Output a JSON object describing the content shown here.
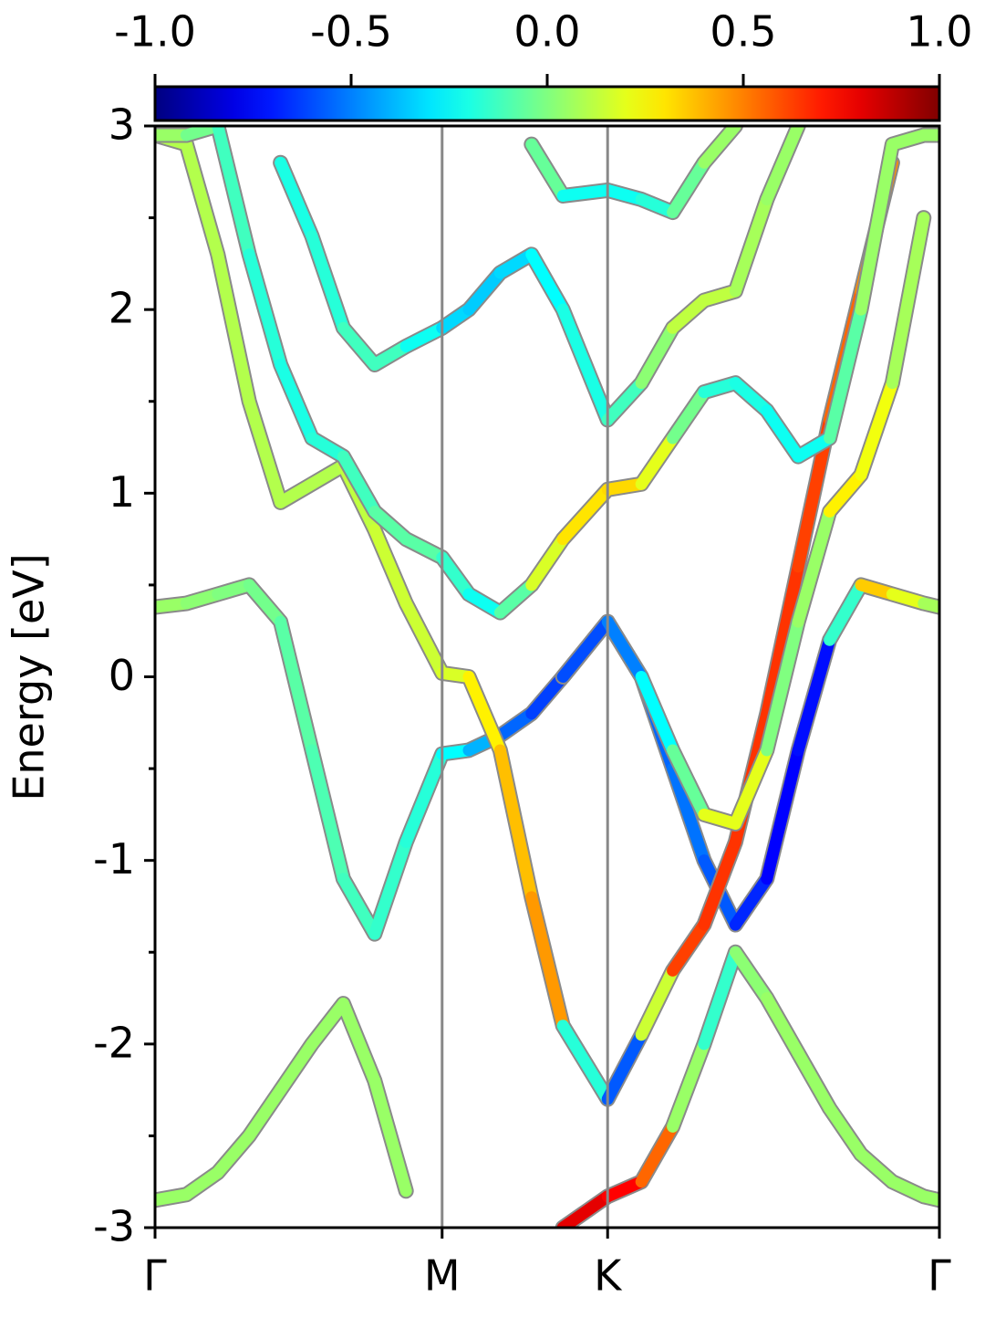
{
  "chart_data": {
    "type": "line",
    "ylabel": "Energy [eV]",
    "ylim": [
      -3,
      3
    ],
    "yticks": [
      -3,
      -2,
      -1,
      0,
      1,
      2,
      3
    ],
    "yminorticks": [
      -2.5,
      -1.5,
      -0.5,
      0.5,
      1.5,
      2.5
    ],
    "xlim": [
      0,
      1
    ],
    "xticks": [
      {
        "value": 0,
        "label": "Γ"
      },
      {
        "value": 0.366,
        "label": "M"
      },
      {
        "value": 0.577,
        "label": "K"
      },
      {
        "value": 1,
        "label": "Γ"
      }
    ],
    "vlines": [
      0.366,
      0.577
    ],
    "colormap": "jet",
    "clim": [
      -1,
      1
    ],
    "cticks": [
      {
        "value": -1,
        "label": "-1.0"
      },
      {
        "value": -0.5,
        "label": "-0.5"
      },
      {
        "value": 0,
        "label": "0.0"
      },
      {
        "value": 0.5,
        "label": "0.5"
      },
      {
        "value": 1,
        "label": "1.0"
      }
    ],
    "x": [
      0,
      0.04,
      0.08,
      0.12,
      0.16,
      0.2,
      0.24,
      0.28,
      0.32,
      0.366,
      0.4,
      0.44,
      0.48,
      0.52,
      0.577,
      0.62,
      0.66,
      0.7,
      0.74,
      0.78,
      0.82,
      0.86,
      0.9,
      0.94,
      0.98,
      1
    ],
    "series": [
      {
        "values": [
          -2.85,
          -2.82,
          -2.7,
          -2.5,
          -2.25,
          -2.0,
          -1.78,
          -2.2,
          -2.8,
          null,
          null,
          null,
          null,
          -3.0,
          -2.83,
          -2.75,
          -2.45,
          -2.0,
          -1.5,
          -1.75,
          -2.05,
          -2.35,
          -2.6,
          -2.75,
          -2.83,
          -2.85
        ],
        "weights": [
          0.05,
          0.05,
          0.05,
          0.05,
          0.05,
          0.05,
          0.05,
          0.05,
          0.05,
          null,
          null,
          null,
          null,
          0.8,
          0.8,
          0.7,
          0.4,
          -0.3,
          0.0,
          0.05,
          0.05,
          0.05,
          0.05,
          0.05,
          0.05,
          0.05
        ]
      },
      {
        "values": [
          0.38,
          0.4,
          0.45,
          0.5,
          0.3,
          -0.4,
          -1.1,
          -1.4,
          -0.9,
          -0.42,
          -0.4,
          -0.32,
          -0.2,
          0.0,
          0.3,
          0.0,
          -0.5,
          -1.0,
          -1.35,
          -1.1,
          -0.4,
          0.2,
          0.5,
          0.45,
          0.4,
          0.38
        ],
        "weights": [
          0.05,
          0.05,
          0.0,
          0.0,
          -0.05,
          -0.1,
          -0.1,
          -0.15,
          -0.15,
          -0.2,
          -0.3,
          -0.5,
          -0.6,
          -0.65,
          -0.65,
          -0.6,
          -0.5,
          -0.55,
          -0.6,
          -0.75,
          -0.75,
          -0.7,
          0.4,
          0.3,
          0.1,
          0.05
        ]
      },
      {
        "values": [
          2.95,
          2.9,
          2.3,
          1.5,
          0.95,
          1.05,
          1.15,
          0.8,
          0.4,
          0.02,
          0.0,
          -0.4,
          -1.2,
          -1.9,
          -2.3,
          -1.95,
          -1.6,
          -1.35,
          -0.9,
          -0.2,
          0.6,
          1.4,
          2.1,
          2.8,
          null,
          null
        ],
        "weights": [
          0.1,
          0.1,
          0.1,
          0.1,
          0.1,
          0.1,
          0.1,
          0.15,
          0.15,
          0.15,
          0.2,
          0.35,
          0.4,
          0.5,
          -0.85,
          -0.3,
          0.6,
          0.65,
          0.65,
          0.65,
          0.65,
          0.6,
          0.5,
          0.45,
          null,
          null
        ]
      },
      {
        "values": [
          2.95,
          2.95,
          3.0,
          2.3,
          1.7,
          1.3,
          1.2,
          0.9,
          0.75,
          0.65,
          0.45,
          0.35,
          0.5,
          0.75,
          1.02,
          1.05,
          1.3,
          1.55,
          1.6,
          1.45,
          1.2,
          1.3,
          2.0,
          2.9,
          2.95,
          2.95
        ],
        "weights": [
          0.05,
          0.05,
          -0.1,
          -0.15,
          -0.2,
          -0.2,
          -0.15,
          -0.1,
          -0.05,
          -0.1,
          -0.2,
          -0.25,
          0.1,
          0.25,
          0.35,
          0.3,
          0.1,
          -0.15,
          -0.2,
          -0.2,
          -0.25,
          -0.2,
          0.05,
          0.05,
          0.05,
          0.05
        ]
      },
      {
        "values": [
          null,
          null,
          null,
          null,
          2.8,
          2.4,
          1.9,
          1.7,
          1.8,
          1.9,
          2.0,
          2.2,
          2.3,
          2.0,
          1.4,
          1.6,
          1.9,
          2.05,
          2.1,
          2.6,
          3.0,
          null,
          null,
          null,
          null,
          null
        ],
        "weights": [
          null,
          null,
          null,
          null,
          -0.2,
          -0.2,
          -0.15,
          -0.1,
          -0.15,
          -0.3,
          -0.35,
          -0.35,
          -0.3,
          -0.2,
          -0.2,
          -0.05,
          0.1,
          0.15,
          0.1,
          0.05,
          0.05,
          null,
          null,
          null,
          null,
          null
        ]
      },
      {
        "values": [
          null,
          null,
          null,
          null,
          null,
          null,
          null,
          null,
          null,
          null,
          null,
          null,
          2.9,
          2.62,
          2.65,
          2.6,
          2.53,
          2.8,
          3.0,
          null,
          null,
          null,
          null,
          null,
          null,
          null
        ],
        "weights": [
          null,
          null,
          null,
          null,
          null,
          null,
          null,
          null,
          null,
          null,
          null,
          null,
          0.1,
          -0.2,
          -0.25,
          -0.2,
          -0.15,
          0.05,
          0.05,
          null,
          null,
          null,
          null,
          null,
          null,
          null
        ]
      },
      {
        "values": [
          null,
          null,
          null,
          null,
          null,
          null,
          null,
          null,
          null,
          null,
          null,
          null,
          null,
          0.0,
          0.3,
          0.0,
          -0.4,
          -0.75,
          -0.8,
          -0.4,
          0.3,
          0.9,
          1.1,
          1.6,
          2.5,
          null
        ],
        "weights": [
          null,
          null,
          null,
          null,
          null,
          null,
          null,
          null,
          null,
          null,
          null,
          null,
          null,
          -0.5,
          -0.7,
          -0.3,
          -0.2,
          0.1,
          0.3,
          0.1,
          -0.1,
          0.2,
          0.35,
          0.1,
          0.05,
          null
        ]
      }
    ]
  }
}
